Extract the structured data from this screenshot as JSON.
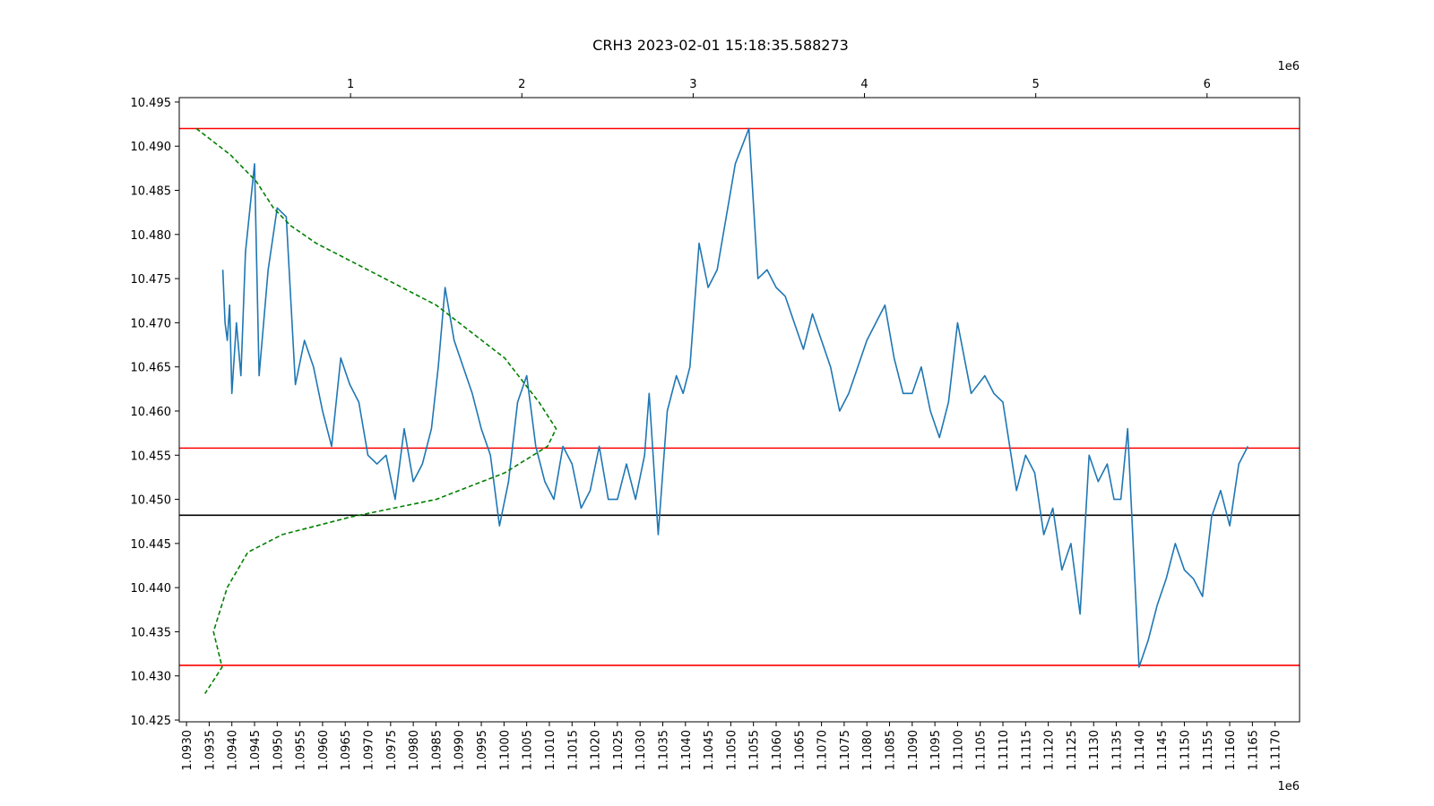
{
  "chart_data": {
    "type": "line",
    "title": "CRH3 2023-02-01 15:18:35.588273",
    "xlabel": "",
    "ylabel": "",
    "x_offset_label": "1e6",
    "top_axis_offset_label": "1e6",
    "xlim": [
      1.09284,
      1.11754
    ],
    "ylim": [
      10.4248,
      10.4955
    ],
    "x_ticks": [
      1.093,
      1.0935,
      1.094,
      1.0945,
      1.095,
      1.0955,
      1.096,
      1.0965,
      1.097,
      1.0975,
      1.098,
      1.0985,
      1.099,
      1.0995,
      1.1,
      1.1005,
      1.101,
      1.1015,
      1.102,
      1.1025,
      1.103,
      1.1035,
      1.104,
      1.1045,
      1.105,
      1.1055,
      1.106,
      1.1065,
      1.107,
      1.1075,
      1.108,
      1.1085,
      1.109,
      1.1095,
      1.11,
      1.1105,
      1.111,
      1.1115,
      1.112,
      1.1125,
      1.113,
      1.1135,
      1.114,
      1.1145,
      1.115,
      1.1155,
      1.116,
      1.1165,
      1.117
    ],
    "x_tick_labels": [
      "1.0930",
      "1.0935",
      "1.0940",
      "1.0945",
      "1.0950",
      "1.0955",
      "1.0960",
      "1.0965",
      "1.0970",
      "1.0975",
      "1.0980",
      "1.0985",
      "1.0990",
      "1.0995",
      "1.1000",
      "1.1005",
      "1.1010",
      "1.1015",
      "1.1020",
      "1.1025",
      "1.1030",
      "1.1035",
      "1.1040",
      "1.1045",
      "1.1050",
      "1.1055",
      "1.1060",
      "1.1065",
      "1.1070",
      "1.1075",
      "1.1080",
      "1.1085",
      "1.1090",
      "1.1095",
      "1.1100",
      "1.1105",
      "1.1110",
      "1.1115",
      "1.1120",
      "1.1125",
      "1.1130",
      "1.1135",
      "1.1140",
      "1.1145",
      "1.1150",
      "1.1155",
      "1.1160",
      "1.1165",
      "1.1170"
    ],
    "y_ticks": [
      10.425,
      10.43,
      10.435,
      10.44,
      10.445,
      10.45,
      10.455,
      10.46,
      10.465,
      10.47,
      10.475,
      10.48,
      10.485,
      10.49,
      10.495
    ],
    "y_tick_labels": [
      "10.425",
      "10.430",
      "10.435",
      "10.440",
      "10.445",
      "10.450",
      "10.455",
      "10.460",
      "10.465",
      "10.470",
      "10.475",
      "10.480",
      "10.485",
      "10.490",
      "10.495"
    ],
    "top_axis": {
      "xlim": [
        0,
        6.54
      ],
      "ticks": [
        1,
        2,
        3,
        4,
        5,
        6
      ],
      "tick_labels": [
        "1",
        "2",
        "3",
        "4",
        "5",
        "6"
      ]
    },
    "grid": false,
    "legend": "none",
    "colors": {
      "price": "#1f77b4",
      "volume_profile": "#008000",
      "level_lines": "#ff0000",
      "mean_line": "#000000"
    },
    "series": [
      {
        "line_style": "solid",
        "axis": "bottom",
        "x": [
          1.0938,
          1.09385,
          1.0939,
          1.09395,
          1.094,
          1.0941,
          1.0942,
          1.0943,
          1.0945,
          1.0946,
          1.0948,
          1.095,
          1.0952,
          1.0954,
          1.0956,
          1.0958,
          1.096,
          1.0962,
          1.0964,
          1.0966,
          1.0968,
          1.097,
          1.0972,
          1.0974,
          1.0976,
          1.0978,
          1.098,
          1.0982,
          1.0984,
          1.09855,
          1.0987,
          1.0989,
          1.0991,
          1.0993,
          1.0995,
          1.0997,
          1.0999,
          1.1001,
          1.1003,
          1.1005,
          1.1007,
          1.1009,
          1.1011,
          1.1013,
          1.1015,
          1.1017,
          1.1019,
          1.1021,
          1.1023,
          1.1025,
          1.1027,
          1.1029,
          1.1031,
          1.1032,
          1.1034,
          1.1036,
          1.1038,
          1.10395,
          1.1041,
          1.1043,
          1.1045,
          1.1047,
          1.1049,
          1.105,
          1.1051,
          1.10525,
          1.1054,
          1.1056,
          1.1058,
          1.106,
          1.1062,
          1.1064,
          1.1066,
          1.1068,
          1.107,
          1.1072,
          1.1074,
          1.1076,
          1.1078,
          1.108,
          1.1082,
          1.1084,
          1.1086,
          1.1088,
          1.109,
          1.1092,
          1.1094,
          1.1096,
          1.1098,
          1.11,
          1.1103,
          1.1106,
          1.1108,
          1.111,
          1.1113,
          1.1115,
          1.1117,
          1.1119,
          1.1121,
          1.1123,
          1.1125,
          1.1127,
          1.1129,
          1.1131,
          1.1133,
          1.11345,
          1.1136,
          1.11375,
          1.114,
          1.1142,
          1.1144,
          1.1146,
          1.1148,
          1.115,
          1.1152,
          1.1154,
          1.1156,
          1.1158,
          1.116,
          1.1162,
          1.1164
        ],
        "y": [
          10.476,
          10.47,
          10.468,
          10.472,
          10.462,
          10.47,
          10.464,
          10.478,
          10.488,
          10.464,
          10.476,
          10.483,
          10.482,
          10.463,
          10.468,
          10.465,
          10.46,
          10.456,
          10.466,
          10.463,
          10.461,
          10.455,
          10.454,
          10.455,
          10.45,
          10.458,
          10.452,
          10.454,
          10.458,
          10.465,
          10.474,
          10.468,
          10.465,
          10.462,
          10.458,
          10.455,
          10.447,
          10.452,
          10.461,
          10.464,
          10.456,
          10.452,
          10.45,
          10.456,
          10.454,
          10.449,
          10.451,
          10.456,
          10.45,
          10.45,
          10.454,
          10.45,
          10.455,
          10.462,
          10.446,
          10.46,
          10.464,
          10.462,
          10.465,
          10.479,
          10.474,
          10.476,
          10.482,
          10.485,
          10.488,
          10.49,
          10.492,
          10.475,
          10.476,
          10.474,
          10.473,
          10.47,
          10.467,
          10.471,
          10.468,
          10.465,
          10.46,
          10.462,
          10.465,
          10.468,
          10.47,
          10.472,
          10.466,
          10.462,
          10.462,
          10.465,
          10.46,
          10.457,
          10.461,
          10.47,
          10.462,
          10.464,
          10.462,
          10.461,
          10.451,
          10.455,
          10.453,
          10.446,
          10.449,
          10.442,
          10.445,
          10.437,
          10.455,
          10.452,
          10.454,
          10.45,
          10.45,
          10.458,
          10.431,
          10.434,
          10.438,
          10.441,
          10.445,
          10.442,
          10.441,
          10.439,
          10.448,
          10.451,
          10.447,
          10.454,
          10.456
        ]
      },
      {
        "line_style": "dashed",
        "axis": "top",
        "x": [
          0.1,
          0.3,
          0.45,
          0.55,
          0.65,
          0.8,
          1.1,
          1.5,
          1.9,
          2.1,
          2.2,
          2.15,
          1.9,
          1.5,
          1.0,
          0.6,
          0.4,
          0.28,
          0.2,
          0.25,
          0.15
        ],
        "y": [
          10.492,
          10.489,
          10.486,
          10.483,
          10.481,
          10.479,
          10.476,
          10.472,
          10.466,
          10.461,
          10.458,
          10.456,
          10.453,
          10.45,
          10.448,
          10.446,
          10.444,
          10.44,
          10.435,
          10.431,
          10.428
        ]
      }
    ],
    "hlines": [
      {
        "y": 10.492,
        "color": "red"
      },
      {
        "y": 10.4558,
        "color": "red"
      },
      {
        "y": 10.4312,
        "color": "red"
      },
      {
        "y": 10.4482,
        "color": "black"
      }
    ]
  }
}
